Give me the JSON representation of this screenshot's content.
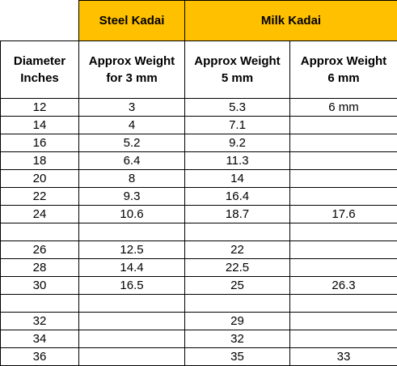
{
  "table": {
    "group_headers": [
      "Steel Kadai",
      "Milk Kadai"
    ],
    "headers": [
      [
        "Diameter",
        "Inches"
      ],
      [
        "Approx Weight",
        "for 3 mm"
      ],
      [
        "Approx Weight",
        "5 mm"
      ],
      [
        "Approx Weight",
        "6 mm"
      ]
    ],
    "rows": [
      [
        12,
        3,
        5.3,
        "6 mm"
      ],
      [
        14,
        4,
        7.1,
        null
      ],
      [
        16,
        5.2,
        9.2,
        null
      ],
      [
        18,
        6.4,
        11.3,
        null
      ],
      [
        20,
        8,
        14,
        null
      ],
      [
        22,
        9.3,
        16.4,
        null
      ],
      [
        24,
        10.6,
        18.7,
        17.6
      ],
      [
        null,
        null,
        null,
        null
      ],
      [
        26,
        12.5,
        22,
        null
      ],
      [
        28,
        14.4,
        22.5,
        null
      ],
      [
        30,
        16.5,
        25,
        26.3
      ],
      [
        null,
        null,
        null,
        null
      ],
      [
        32,
        null,
        29,
        null
      ],
      [
        34,
        null,
        32,
        null
      ],
      [
        36,
        null,
        35,
        33
      ]
    ]
  }
}
